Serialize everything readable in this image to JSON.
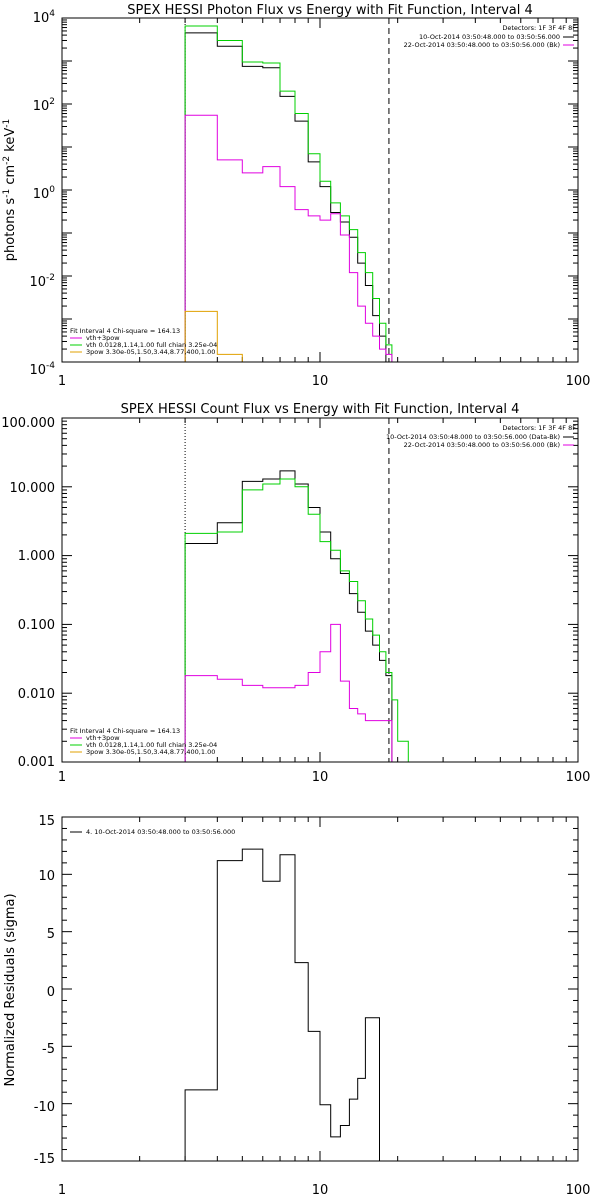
{
  "colors": {
    "data": "#000000",
    "vth_3pow": "#e000e0",
    "vth": "#00d000",
    "pow3": "#e0a000",
    "bkg": "#ffffff"
  },
  "chart_data": [
    {
      "type": "line",
      "title": "SPEX HESSI Photon Flux vs Energy with Fit Function, Interval 4",
      "xlabel": "",
      "ylabel": "photons s-1 cm-2 keV-1",
      "xscale": "log",
      "yscale": "log",
      "xlim": [
        1,
        100
      ],
      "ylim": [
        0.0001,
        10000
      ],
      "xtick_labels": [
        "1",
        "10",
        "100"
      ],
      "ytick_labels": [
        "10^4",
        "10^2",
        "10^0",
        "10^-2",
        "10^-4"
      ],
      "fit_range": [
        3,
        18.5
      ],
      "edges": [
        3,
        4,
        5,
        6,
        7,
        8,
        9,
        10,
        11,
        12,
        13,
        14,
        15,
        16,
        17,
        18,
        19,
        20,
        22
      ],
      "series": [
        {
          "key": "data",
          "values": [
            4500,
            2200,
            750,
            700,
            150,
            40,
            4.5,
            1.2,
            0.3,
            0.18,
            0.08,
            0.02,
            0.006,
            0.0012,
            0.0004,
            0.0001,
            null,
            null
          ]
        },
        {
          "key": "vth",
          "name": "vth 0.0128,1.14,1.00 full chian 3.25e-04",
          "values": [
            6500,
            3000,
            950,
            900,
            200,
            60,
            7,
            1.6,
            0.5,
            0.25,
            0.12,
            0.035,
            0.012,
            0.003,
            0.0008,
            0.00025,
            7e-05,
            null
          ]
        },
        {
          "key": "vth_3pow",
          "name": "vth+3pow",
          "values": [
            55,
            5,
            2.5,
            3.5,
            1.2,
            0.35,
            0.25,
            0.2,
            0.28,
            0.09,
            0.012,
            0.002,
            0.0008,
            0.0004,
            0.0002,
            0.00015,
            null,
            null
          ]
        },
        {
          "key": "pow3",
          "name": "3pow 3.30e-05,1.50,3.44,8.77,400,1.00",
          "values": [
            0.0015,
            0.00015,
            null,
            null,
            null,
            null,
            null,
            null,
            null,
            null,
            null,
            null,
            null,
            null,
            null,
            null,
            null,
            null
          ]
        }
      ],
      "legend_header": "Fit Interval  4    Chi-square = 164.13",
      "legend_placement": "lower-left",
      "detectors": "Detectors: 1F 3F 4F 8F",
      "data_time": "10-Oct-2014 03:50:48.000 to 03:50:56.000",
      "bk_time": "22-Oct-2014 03:50:48.000 to 03:50:56.000 (Bk)"
    },
    {
      "type": "line",
      "title": "SPEX HESSI Count Flux vs Energy with Fit Function, Interval 4",
      "xlabel": "",
      "ylabel": "",
      "xscale": "log",
      "yscale": "log",
      "xlim": [
        1,
        100
      ],
      "ylim": [
        0.001,
        100
      ],
      "xtick_labels": [
        "1",
        "10",
        "100"
      ],
      "ytick_labels": [
        "100.000",
        "10.000",
        "1.000",
        "0.100",
        "0.010",
        "0.001"
      ],
      "fit_range": [
        3,
        18.5
      ],
      "edges": [
        3,
        4,
        5,
        6,
        7,
        8,
        9,
        10,
        11,
        12,
        13,
        14,
        15,
        16,
        17,
        18,
        19,
        20,
        22
      ],
      "series": [
        {
          "key": "data",
          "values": [
            1.5,
            3.0,
            12,
            13,
            17,
            11,
            5,
            2.2,
            0.9,
            0.55,
            0.28,
            0.15,
            0.08,
            0.05,
            0.03,
            0.018,
            null,
            null
          ]
        },
        {
          "key": "vth",
          "name": "vth 0.0128,1.14,1.00 full chian 3.25e-04",
          "values": [
            2.1,
            2.2,
            9,
            11,
            13,
            10,
            4,
            1.6,
            1.2,
            0.6,
            0.42,
            0.22,
            0.12,
            0.07,
            0.04,
            0.02,
            0.008,
            0.002
          ]
        },
        {
          "key": "vth_3pow",
          "name": "vth+3pow",
          "values": [
            0.018,
            0.016,
            0.013,
            0.012,
            0.012,
            0.013,
            0.02,
            0.04,
            0.1,
            0.015,
            0.006,
            0.005,
            0.004,
            0.004,
            0.004,
            0.004,
            null,
            null
          ]
        }
      ],
      "legend_header": "Fit Interval  4    Chi-square = 164.13",
      "legend_placement": "lower-left",
      "detectors": "Detectors: 1F 3F 4F 8F",
      "data_time": "10-Oct-2014 03:50:48.000 to 03:50:56.000 (Data-Bk)",
      "bk_time": "22-Oct-2014 03:50:48.000 to 03:50:56.000 (Bk)"
    },
    {
      "type": "line",
      "title": "",
      "xlabel": "",
      "ylabel": "Normalized Residuals (sigma)",
      "xscale": "log",
      "yscale": "linear",
      "xlim": [
        1,
        100
      ],
      "ylim": [
        -15,
        15
      ],
      "xtick_labels": [
        "1",
        "10",
        "100"
      ],
      "ytick_labels": [
        "15",
        "10",
        "5",
        "0",
        "-5",
        "-10",
        "-15"
      ],
      "edges": [
        3,
        4,
        5,
        6,
        7,
        8,
        9,
        10,
        11,
        12,
        13,
        14,
        15,
        16,
        17,
        18.5
      ],
      "series": [
        {
          "key": "data",
          "name": "4. 10-Oct-2014 03:50:48.000 to 03:50:56.000",
          "values": [
            -8.8,
            11.2,
            12.2,
            9.4,
            11.7,
            2.3,
            -3.7,
            -10.1,
            -12.9,
            -11.9,
            -9.6,
            -7.8,
            -2.5,
            -2.5,
            null
          ]
        }
      ],
      "legend_placement": "top-left"
    }
  ]
}
